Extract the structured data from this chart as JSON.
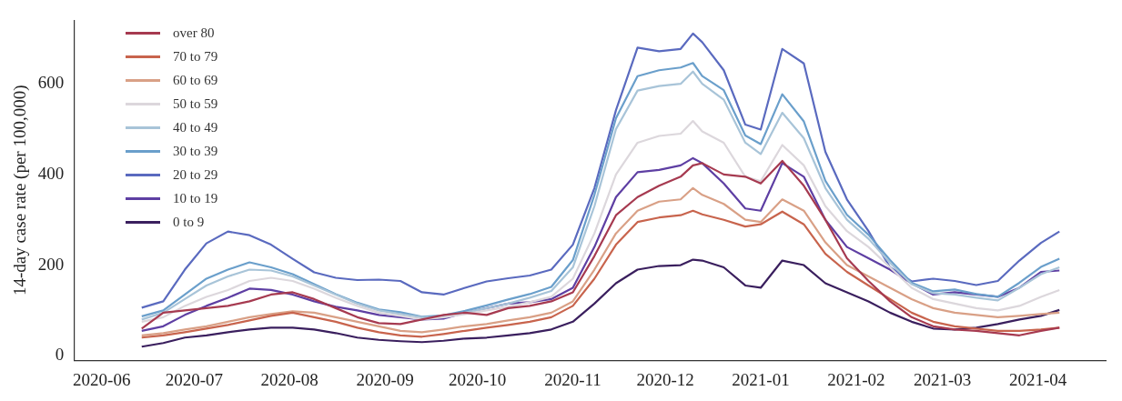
{
  "chart_data": {
    "type": "line",
    "ylabel": "14-day case rate (per 100,000)",
    "legend": "top left",
    "grid": false,
    "marker": "none",
    "line_style": "solid",
    "x": [
      "2020-06-14",
      "2020-06-21",
      "2020-06-28",
      "2020-07-05",
      "2020-07-12",
      "2020-07-19",
      "2020-07-26",
      "2020-08-02",
      "2020-08-09",
      "2020-08-16",
      "2020-08-23",
      "2020-08-30",
      "2020-09-06",
      "2020-09-13",
      "2020-09-20",
      "2020-09-27",
      "2020-10-04",
      "2020-10-11",
      "2020-10-18",
      "2020-10-25",
      "2020-11-01",
      "2020-11-08",
      "2020-11-15",
      "2020-11-22",
      "2020-11-29",
      "2020-12-06",
      "2020-12-10",
      "2020-12-13",
      "2020-12-20",
      "2020-12-27",
      "2021-01-01",
      "2021-01-08",
      "2021-01-15",
      "2021-01-22",
      "2021-01-29",
      "2021-02-05",
      "2021-02-12",
      "2021-02-19",
      "2021-02-26",
      "2021-03-05",
      "2021-03-12",
      "2021-03-19",
      "2021-03-26",
      "2021-04-02",
      "2021-04-08"
    ],
    "xlim": [
      "2020-05-23",
      "2021-04-23"
    ],
    "xticks": [
      "2020-06",
      "2020-07",
      "2020-08",
      "2020-09",
      "2020-10",
      "2020-11",
      "2020-12",
      "2021-01",
      "2021-02",
      "2021-03",
      "2021-04"
    ],
    "ylim": [
      -10,
      740
    ],
    "yticks": [
      0,
      200,
      400,
      600
    ],
    "series": [
      {
        "name": "over 80",
        "color": "#a63a50",
        "values": [
          60,
          95,
          100,
          105,
          110,
          120,
          135,
          140,
          125,
          105,
          85,
          72,
          70,
          80,
          90,
          95,
          90,
          105,
          110,
          120,
          140,
          220,
          310,
          350,
          375,
          395,
          420,
          425,
          400,
          395,
          380,
          430,
          375,
          300,
          215,
          165,
          120,
          85,
          65,
          58,
          55,
          50,
          45,
          55,
          62
        ]
      },
      {
        "name": "70 to 79",
        "color": "#c8644d",
        "values": [
          40,
          45,
          52,
          60,
          68,
          78,
          88,
          95,
          85,
          75,
          62,
          52,
          45,
          42,
          48,
          55,
          62,
          68,
          75,
          85,
          110,
          170,
          245,
          295,
          305,
          310,
          320,
          312,
          300,
          285,
          290,
          318,
          290,
          225,
          185,
          155,
          125,
          95,
          75,
          65,
          60,
          55,
          55,
          58,
          62
        ]
      },
      {
        "name": "60 to 69",
        "color": "#d9a086",
        "values": [
          45,
          50,
          58,
          65,
          75,
          85,
          92,
          98,
          95,
          85,
          75,
          65,
          55,
          52,
          58,
          65,
          70,
          78,
          85,
          95,
          120,
          190,
          270,
          320,
          340,
          345,
          370,
          355,
          335,
          300,
          295,
          345,
          320,
          250,
          200,
          175,
          150,
          125,
          105,
          95,
          90,
          85,
          88,
          92,
          95
        ]
      },
      {
        "name": "50 to 59",
        "color": "#dcd7dc",
        "values": [
          75,
          85,
          110,
          130,
          145,
          165,
          172,
          165,
          148,
          128,
          110,
          95,
          88,
          80,
          85,
          92,
          100,
          108,
          118,
          130,
          170,
          270,
          400,
          470,
          485,
          490,
          518,
          495,
          470,
          395,
          385,
          465,
          420,
          330,
          275,
          240,
          195,
          150,
          125,
          115,
          105,
          100,
          110,
          130,
          145
        ]
      },
      {
        "name": "40 to 49",
        "color": "#a8c4d8",
        "values": [
          80,
          95,
          125,
          155,
          175,
          190,
          188,
          175,
          155,
          135,
          115,
          100,
          92,
          85,
          85,
          95,
          105,
          115,
          128,
          143,
          195,
          330,
          500,
          585,
          595,
          600,
          627,
          600,
          565,
          470,
          445,
          536,
          480,
          370,
          300,
          258,
          205,
          158,
          138,
          135,
          128,
          122,
          150,
          180,
          195
        ]
      },
      {
        "name": "30 to 39",
        "color": "#6a9fcb",
        "values": [
          87,
          100,
          135,
          170,
          190,
          206,
          195,
          180,
          158,
          136,
          117,
          102,
          96,
          86,
          89,
          99,
          111,
          124,
          136,
          152,
          211,
          355,
          524,
          617,
          630,
          636,
          646,
          617,
          586,
          486,
          467,
          577,
          517,
          386,
          311,
          267,
          211,
          161,
          142,
          146,
          136,
          130,
          161,
          196,
          214
        ]
      },
      {
        "name": "20 to 29",
        "color": "#5a6abf",
        "values": [
          106,
          120,
          190,
          248,
          274,
          266,
          245,
          214,
          184,
          172,
          167,
          168,
          165,
          140,
          135,
          150,
          164,
          171,
          177,
          190,
          245,
          370,
          542,
          680,
          672,
          677,
          711,
          692,
          630,
          510,
          499,
          677,
          645,
          450,
          345,
          275,
          195,
          164,
          170,
          165,
          156,
          165,
          210,
          249,
          274
        ]
      },
      {
        "name": "10 to 19",
        "color": "#5e3fa3",
        "values": [
          55,
          65,
          90,
          110,
          128,
          148,
          145,
          135,
          120,
          108,
          100,
          90,
          85,
          80,
          82,
          95,
          105,
          115,
          118,
          125,
          150,
          240,
          350,
          405,
          410,
          420,
          436,
          425,
          380,
          325,
          320,
          425,
          395,
          300,
          240,
          215,
          190,
          160,
          135,
          140,
          135,
          130,
          150,
          185,
          188
        ]
      },
      {
        "name": "0 to 9",
        "color": "#3a1f5e",
        "values": [
          20,
          28,
          40,
          45,
          52,
          58,
          62,
          62,
          58,
          50,
          40,
          35,
          32,
          30,
          33,
          38,
          40,
          45,
          50,
          58,
          75,
          115,
          160,
          190,
          198,
          200,
          212,
          210,
          195,
          155,
          150,
          210,
          200,
          160,
          140,
          120,
          95,
          75,
          60,
          58,
          62,
          70,
          80,
          88,
          101
        ]
      }
    ]
  }
}
